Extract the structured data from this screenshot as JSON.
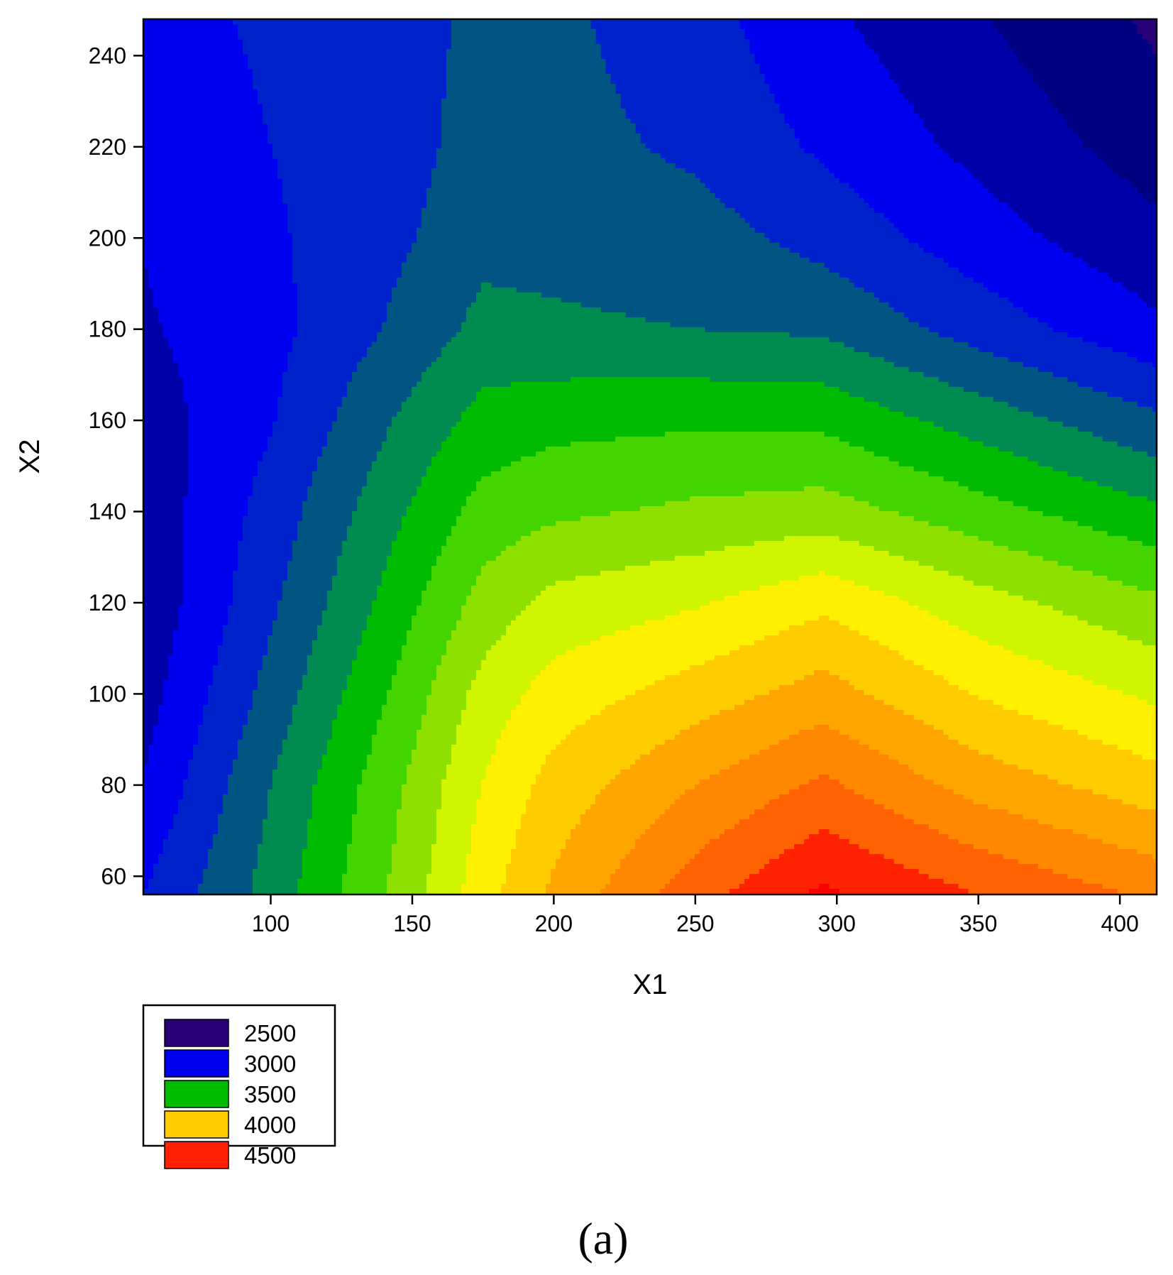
{
  "chart_data": {
    "type": "contour",
    "xlabel": "X1",
    "ylabel": "X2",
    "panel_label": "(a)",
    "xlim": [
      55,
      413
    ],
    "ylim": [
      56,
      248
    ],
    "xticks": [
      100,
      150,
      200,
      250,
      300,
      350,
      400
    ],
    "yticks": [
      60,
      80,
      100,
      120,
      140,
      160,
      180,
      200,
      220,
      240
    ],
    "grid": false,
    "legend_position": "bottom-left",
    "legend": [
      {
        "label": "2500",
        "color": "#2a007a"
      },
      {
        "label": "3000",
        "color": "#0000f0"
      },
      {
        "label": "3500",
        "color": "#00bb00"
      },
      {
        "label": "4000",
        "color": "#ffcc00"
      },
      {
        "label": "4500",
        "color": "#ff2200"
      }
    ],
    "level_colors": [
      "#2a007a",
      "#000082",
      "#0000aa",
      "#0000f0",
      "#0022cc",
      "#005582",
      "#008b50",
      "#00bb00",
      "#44d400",
      "#8de000",
      "#cff500",
      "#ffef00",
      "#ffcc00",
      "#ffa500",
      "#ff8800",
      "#ff6200",
      "#ff2200",
      "#ff0000"
    ],
    "z_grid": {
      "x": [
        55,
        100,
        150,
        175,
        200,
        250,
        295,
        350,
        413
      ],
      "y": [
        56,
        80,
        100,
        120,
        140,
        160,
        180,
        200,
        220,
        248
      ],
      "z": [
        [
          3000,
          3300,
          3700,
          3950,
          4150,
          4450,
          4650,
          4500,
          4350
        ],
        [
          2880,
          3250,
          3650,
          3880,
          4050,
          4250,
          4400,
          4200,
          4050
        ],
        [
          2820,
          3170,
          3570,
          3800,
          3930,
          4060,
          4180,
          3990,
          3850
        ],
        [
          2780,
          3100,
          3480,
          3670,
          3790,
          3860,
          3970,
          3800,
          3650
        ],
        [
          2790,
          3050,
          3390,
          3550,
          3600,
          3650,
          3680,
          3550,
          3400
        ],
        [
          2810,
          2990,
          3290,
          3420,
          3460,
          3480,
          3470,
          3320,
          3150
        ],
        [
          2860,
          2960,
          3170,
          3290,
          3270,
          3250,
          3230,
          3070,
          2900
        ],
        [
          2880,
          2980,
          3120,
          3210,
          3210,
          3180,
          3080,
          2930,
          2780
        ],
        [
          2920,
          3000,
          3090,
          3180,
          3170,
          3100,
          2980,
          2840,
          2690
        ],
        [
          2950,
          3020,
          3080,
          3160,
          3150,
          3050,
          2900,
          2760,
          2600
        ]
      ]
    }
  }
}
